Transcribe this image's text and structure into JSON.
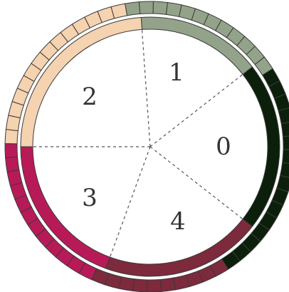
{
  "diagram": {
    "sectors": [
      {
        "label": "0",
        "color": "#0b1f0b"
      },
      {
        "label": "1",
        "color": "#93a38a"
      },
      {
        "label": "2",
        "color": "#f5d2b0"
      },
      {
        "label": "3",
        "color": "#b81a58"
      },
      {
        "label": "4",
        "color": "#7d2a3c"
      }
    ],
    "outer_ring": {
      "segment_count": 64,
      "colors": {
        "dark": "#0b1f0b",
        "sage": "#93a38a",
        "peach": "#f5d2b0",
        "magenta": "#b81a58",
        "maroon": "#7d2a3c"
      }
    }
  }
}
